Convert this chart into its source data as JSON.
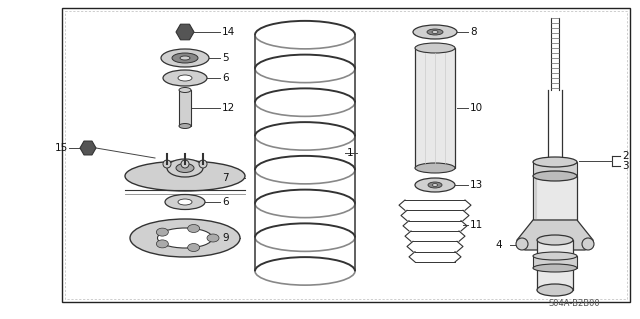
{
  "bg_color": "#ffffff",
  "border_color": "#222222",
  "part_fill": "#d0d0d0",
  "part_dark": "#888888",
  "part_outline": "#333333",
  "watermark": "S04A-B2B00",
  "figsize": [
    6.4,
    3.19
  ],
  "dpi": 100
}
